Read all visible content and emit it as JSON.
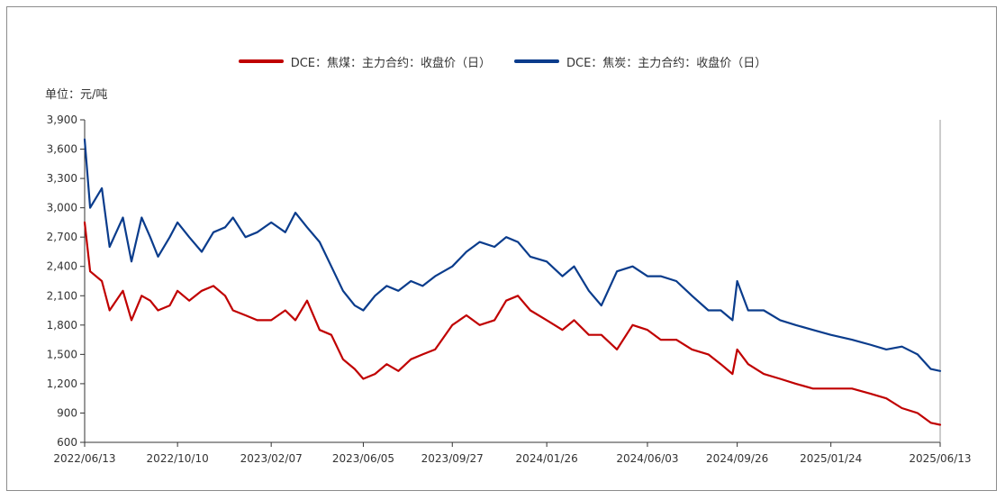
{
  "unit_label": "单位：元/吨",
  "colors": {
    "coking_coal": "#c00000",
    "coke": "#0a3c8c"
  },
  "chart_data": {
    "type": "line",
    "title": "",
    "xlabel": "",
    "ylabel": "单位：元/吨",
    "ylim": [
      600,
      3900
    ],
    "yticks": [
      600,
      900,
      1200,
      1500,
      1800,
      2100,
      2400,
      2700,
      3000,
      3300,
      3600,
      3900
    ],
    "ytick_labels": [
      "600",
      "900",
      "1,200",
      "1,500",
      "1,800",
      "2,100",
      "2,400",
      "2,700",
      "3,000",
      "3,300",
      "3,600",
      "3,900"
    ],
    "xticks": [
      "2022/06/13",
      "2022/10/10",
      "2023/02/07",
      "2023/06/05",
      "2023/09/27",
      "2024/01/26",
      "2024/06/03",
      "2024/09/26",
      "2025/01/24",
      "2025/06/13"
    ],
    "legend_position": "top-center",
    "grid": false,
    "series": [
      {
        "name": "DCE：焦煤：主力合约：收盘价（日）",
        "color": "#c00000",
        "x": [
          "2022/06/13",
          "2022/06/20",
          "2022/07/05",
          "2022/07/15",
          "2022/08/01",
          "2022/08/12",
          "2022/08/25",
          "2022/09/05",
          "2022/09/15",
          "2022/09/30",
          "2022/10/10",
          "2022/10/25",
          "2022/11/10",
          "2022/11/25",
          "2022/12/10",
          "2022/12/20",
          "2023/01/05",
          "2023/01/20",
          "2023/02/07",
          "2023/02/25",
          "2023/03/10",
          "2023/03/25",
          "2023/04/10",
          "2023/04/25",
          "2023/05/10",
          "2023/05/25",
          "2023/06/05",
          "2023/06/20",
          "2023/07/05",
          "2023/07/20",
          "2023/08/05",
          "2023/08/20",
          "2023/09/05",
          "2023/09/27",
          "2023/10/15",
          "2023/11/01",
          "2023/11/20",
          "2023/12/05",
          "2023/12/20",
          "2024/01/05",
          "2024/01/26",
          "2024/02/15",
          "2024/03/01",
          "2024/03/20",
          "2024/04/05",
          "2024/04/25",
          "2024/05/15",
          "2024/06/03",
          "2024/06/20",
          "2024/07/10",
          "2024/07/30",
          "2024/08/20",
          "2024/09/05",
          "2024/09/20",
          "2024/09/26",
          "2024/10/10",
          "2024/10/30",
          "2024/11/20",
          "2024/12/10",
          "2025/01/01",
          "2025/01/24",
          "2025/02/20",
          "2025/03/15",
          "2025/04/05",
          "2025/04/25",
          "2025/05/15",
          "2025/06/01",
          "2025/06/13"
        ],
        "values": [
          2850,
          2350,
          2250,
          1950,
          2150,
          1850,
          2100,
          2050,
          1950,
          2000,
          2150,
          2050,
          2150,
          2200,
          2100,
          1950,
          1900,
          1850,
          1850,
          1950,
          1850,
          2050,
          1750,
          1700,
          1450,
          1350,
          1250,
          1300,
          1400,
          1330,
          1450,
          1500,
          1550,
          1800,
          1900,
          1800,
          1850,
          2050,
          2100,
          1950,
          1850,
          1750,
          1850,
          1700,
          1700,
          1550,
          1800,
          1750,
          1650,
          1650,
          1550,
          1500,
          1400,
          1300,
          1550,
          1400,
          1300,
          1250,
          1200,
          1150,
          1150,
          1150,
          1100,
          1050,
          950,
          900,
          800,
          780
        ]
      },
      {
        "name": "DCE：焦炭：主力合约：收盘价（日）",
        "color": "#0a3c8c",
        "x": [
          "2022/06/13",
          "2022/06/20",
          "2022/07/05",
          "2022/07/15",
          "2022/08/01",
          "2022/08/12",
          "2022/08/25",
          "2022/09/05",
          "2022/09/15",
          "2022/09/30",
          "2022/10/10",
          "2022/10/25",
          "2022/11/10",
          "2022/11/25",
          "2022/12/10",
          "2022/12/20",
          "2023/01/05",
          "2023/01/20",
          "2023/02/07",
          "2023/02/25",
          "2023/03/10",
          "2023/03/25",
          "2023/04/10",
          "2023/04/25",
          "2023/05/10",
          "2023/05/25",
          "2023/06/05",
          "2023/06/20",
          "2023/07/05",
          "2023/07/20",
          "2023/08/05",
          "2023/08/20",
          "2023/09/05",
          "2023/09/27",
          "2023/10/15",
          "2023/11/01",
          "2023/11/20",
          "2023/12/05",
          "2023/12/20",
          "2024/01/05",
          "2024/01/26",
          "2024/02/15",
          "2024/03/01",
          "2024/03/20",
          "2024/04/05",
          "2024/04/25",
          "2024/05/15",
          "2024/06/03",
          "2024/06/20",
          "2024/07/10",
          "2024/07/30",
          "2024/08/20",
          "2024/09/05",
          "2024/09/20",
          "2024/09/26",
          "2024/10/10",
          "2024/10/30",
          "2024/11/20",
          "2024/12/10",
          "2025/01/01",
          "2025/01/24",
          "2025/02/20",
          "2025/03/15",
          "2025/04/05",
          "2025/04/25",
          "2025/05/15",
          "2025/06/01",
          "2025/06/13"
        ],
        "values": [
          3700,
          3000,
          3200,
          2600,
          2900,
          2450,
          2900,
          2700,
          2500,
          2700,
          2850,
          2700,
          2550,
          2750,
          2800,
          2900,
          2700,
          2750,
          2850,
          2750,
          2950,
          2800,
          2650,
          2400,
          2150,
          2000,
          1950,
          2100,
          2200,
          2150,
          2250,
          2200,
          2300,
          2400,
          2550,
          2650,
          2600,
          2700,
          2650,
          2500,
          2450,
          2300,
          2400,
          2150,
          2000,
          2350,
          2400,
          2300,
          2300,
          2250,
          2100,
          1950,
          1950,
          1850,
          2250,
          1950,
          1950,
          1850,
          1800,
          1750,
          1700,
          1650,
          1600,
          1550,
          1580,
          1500,
          1350,
          1330
        ]
      }
    ]
  }
}
